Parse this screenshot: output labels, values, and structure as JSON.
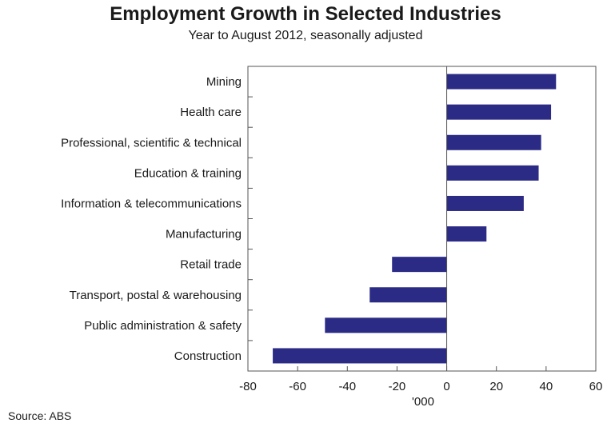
{
  "chart_data": {
    "type": "bar",
    "orientation": "horizontal",
    "title": "Employment Growth in Selected Industries",
    "subtitle": "Year to August 2012, seasonally adjusted",
    "xlabel": "'000",
    "source": "Source: ABS",
    "categories": [
      "Mining",
      "Health care",
      "Professional, scientific & technical",
      "Education & training",
      "Information & telecommunications",
      "Manufacturing",
      "Retail trade",
      "Transport, postal & warehousing",
      "Public administration & safety",
      "Construction"
    ],
    "values": [
      44,
      42,
      38,
      37,
      31,
      16,
      -22,
      -31,
      -49,
      -70
    ],
    "xlim": [
      -80,
      60
    ],
    "xticks": [
      -80,
      -60,
      -40,
      -20,
      0,
      20,
      40,
      60
    ],
    "grid": false,
    "bar_color": "#2b2b86"
  }
}
